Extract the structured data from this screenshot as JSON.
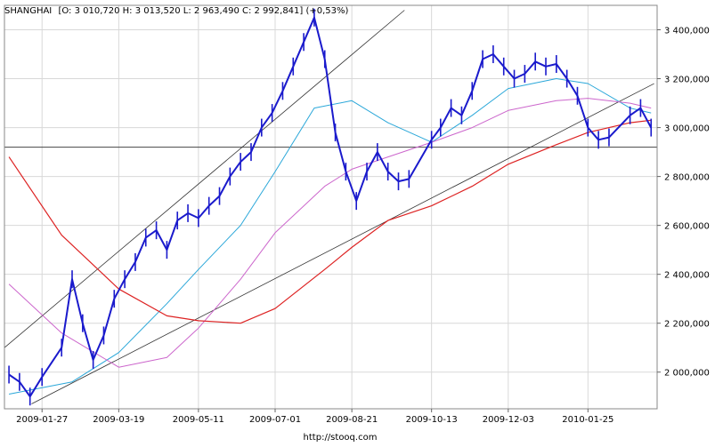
{
  "header": {
    "symbol": "SHANGHAI",
    "quote": "[O: 3 010,720  H: 3 013,520  L: 2 963,490  C: 2 992,841] (+0,53%)"
  },
  "footer": {
    "source": "http://stooq.com"
  },
  "chart_data": {
    "type": "line",
    "title": "SHANGHAI [O: 3 010,720  H: 3 013,520  L: 2 963,490  C: 2 992,841] (+0,53%)",
    "xlabel": "",
    "ylabel": "",
    "x_ticks": [
      "2009-01-27",
      "2009-03-19",
      "2009-05-11",
      "2009-07-01",
      "2009-08-21",
      "2009-10-13",
      "2009-12-03",
      "2010-01-25"
    ],
    "y_ticks": [
      "2 000,000",
      "2 200,000",
      "2 400,000",
      "2 600,000",
      "2 800,000",
      "3 000,000",
      "3 200,000",
      "3 400,000"
    ],
    "ylim": [
      1850,
      3500
    ],
    "grid": true,
    "horizontal_line": 2920,
    "colors": {
      "price": "#1a1acc",
      "ma_short": "#2aa7d9",
      "ma_mid": "#cc66cc",
      "ma_long": "#dd2222",
      "channel": "#333333",
      "grid": "#d8d8d8"
    },
    "series": [
      {
        "name": "",
        "role": "close",
        "x": [
          "2009-01-05",
          "2009-01-12",
          "2009-01-19",
          "2009-01-27",
          "2009-02-09",
          "2009-02-16",
          "2009-02-23",
          "2009-03-02",
          "2009-03-09",
          "2009-03-16",
          "2009-03-23",
          "2009-03-30",
          "2009-04-06",
          "2009-04-13",
          "2009-04-20",
          "2009-04-27",
          "2009-05-04",
          "2009-05-11",
          "2009-05-18",
          "2009-05-25",
          "2009-06-01",
          "2009-06-08",
          "2009-06-15",
          "2009-06-22",
          "2009-06-29",
          "2009-07-06",
          "2009-07-13",
          "2009-07-20",
          "2009-07-27",
          "2009-08-03",
          "2009-08-10",
          "2009-08-17",
          "2009-08-24",
          "2009-08-31",
          "2009-09-07",
          "2009-09-14",
          "2009-09-21",
          "2009-09-28",
          "2009-10-13",
          "2009-10-19",
          "2009-10-26",
          "2009-11-02",
          "2009-11-09",
          "2009-11-16",
          "2009-11-23",
          "2009-11-30",
          "2009-12-07",
          "2009-12-14",
          "2009-12-21",
          "2009-12-28",
          "2010-01-04",
          "2010-01-11",
          "2010-01-18",
          "2010-01-25",
          "2010-02-01",
          "2010-02-08",
          "2010-02-22",
          "2010-03-01",
          "2010-03-08"
        ],
        "values": [
          1990,
          1960,
          1900,
          1980,
          2100,
          2380,
          2200,
          2050,
          2150,
          2300,
          2380,
          2450,
          2550,
          2580,
          2500,
          2620,
          2650,
          2630,
          2680,
          2720,
          2800,
          2860,
          2900,
          3000,
          3060,
          3150,
          3250,
          3350,
          3450,
          3280,
          2980,
          2820,
          2700,
          2820,
          2900,
          2820,
          2780,
          2790,
          2950,
          3000,
          3080,
          3050,
          3150,
          3280,
          3300,
          3250,
          3200,
          3220,
          3270,
          3250,
          3260,
          3200,
          3130,
          3000,
          2950,
          2960,
          3050,
          3080,
          3000
        ]
      },
      {
        "name": "",
        "role": "moving-average-short",
        "x": [
          "2009-01-05",
          "2009-02-16",
          "2009-03-19",
          "2009-04-20",
          "2009-05-11",
          "2009-06-08",
          "2009-07-01",
          "2009-07-27",
          "2009-08-21",
          "2009-09-14",
          "2009-10-13",
          "2009-11-09",
          "2009-12-03",
          "2010-01-04",
          "2010-01-25",
          "2010-02-22",
          "2010-03-08"
        ],
        "values": [
          1910,
          1960,
          2080,
          2280,
          2420,
          2600,
          2820,
          3080,
          3110,
          3020,
          2940,
          3050,
          3160,
          3200,
          3180,
          3080,
          3060
        ]
      },
      {
        "name": "",
        "role": "moving-average-mid",
        "x": [
          "2009-01-05",
          "2009-02-09",
          "2009-03-19",
          "2009-04-20",
          "2009-05-11",
          "2009-06-08",
          "2009-07-01",
          "2009-08-03",
          "2009-08-21",
          "2009-09-14",
          "2009-10-13",
          "2009-11-09",
          "2009-12-03",
          "2010-01-04",
          "2010-01-25",
          "2010-02-22",
          "2010-03-08"
        ],
        "values": [
          2360,
          2160,
          2020,
          2060,
          2180,
          2380,
          2570,
          2760,
          2830,
          2880,
          2940,
          3000,
          3070,
          3110,
          3120,
          3100,
          3080
        ]
      },
      {
        "name": "",
        "role": "moving-average-long",
        "x": [
          "2009-01-05",
          "2009-02-09",
          "2009-03-19",
          "2009-04-20",
          "2009-05-11",
          "2009-06-08",
          "2009-07-01",
          "2009-08-03",
          "2009-08-21",
          "2009-09-14",
          "2009-10-13",
          "2009-11-09",
          "2009-12-03",
          "2010-01-04",
          "2010-01-25",
          "2010-02-22",
          "2010-03-08"
        ],
        "values": [
          2880,
          2560,
          2340,
          2230,
          2210,
          2200,
          2260,
          2420,
          2510,
          2620,
          2680,
          2760,
          2850,
          2930,
          2980,
          3020,
          3030
        ]
      }
    ]
  }
}
